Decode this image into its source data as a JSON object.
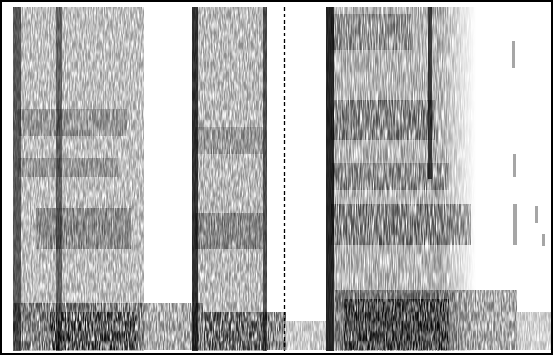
{
  "figure": {
    "kind": "spectrogram",
    "ink_color": "#000000",
    "background_color": "#ffffff",
    "frame": true,
    "has_dashed_marker": true
  }
}
